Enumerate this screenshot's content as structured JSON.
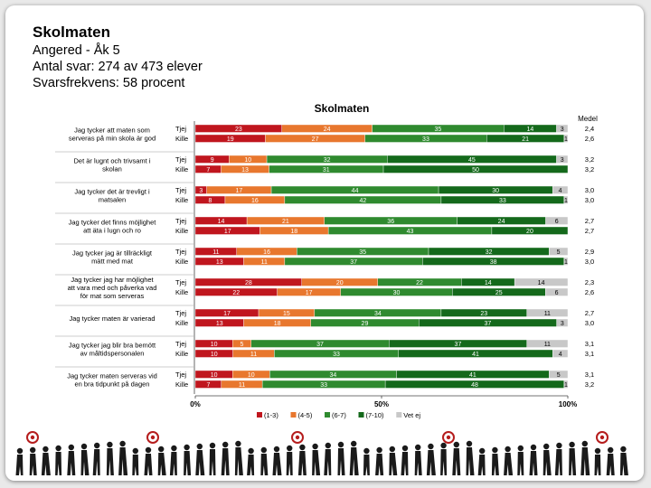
{
  "header": {
    "title": "Skolmaten",
    "line1": "Angered - Åk 5",
    "line2": "Antal svar: 274 av 473 elever",
    "line3": "Svarsfrekvens: 58 procent"
  },
  "chart_data": {
    "type": "bar",
    "stacked": true,
    "orientation": "horizontal",
    "title": "Skolmaten",
    "mean_header": "Medel",
    "x_ticks": [
      "0%",
      "50%",
      "100%"
    ],
    "xlim": [
      0,
      100
    ],
    "legend_placement": "bottom",
    "series": [
      {
        "name": "(1-3)",
        "color": "#c0161e"
      },
      {
        "name": "(4-5)",
        "color": "#e8772e"
      },
      {
        "name": "(6-7)",
        "color": "#2f8a2f"
      },
      {
        "name": "(7-10)",
        "color": "#14691b"
      },
      {
        "name": "Vet ej",
        "color": "#c8c8c8"
      }
    ],
    "questions": [
      {
        "label": "Jag tycker att maten som serveras på min skola är god",
        "rows": [
          {
            "group": "Tjej",
            "values": [
              23,
              24,
              35,
              14,
              3
            ],
            "mean": "2,4"
          },
          {
            "group": "Kille",
            "values": [
              19,
              27,
              33,
              21,
              1
            ],
            "mean": "2,6"
          }
        ]
      },
      {
        "label": "Det är lugnt och trivsamt i skolan",
        "rows": [
          {
            "group": "Tjej",
            "values": [
              9,
              10,
              32,
              45,
              3
            ],
            "mean": "3,2"
          },
          {
            "group": "Kille",
            "values": [
              7,
              13,
              31,
              50,
              0
            ],
            "mean": "3,2"
          }
        ]
      },
      {
        "label": "Jag tycker det är trevligt i matsalen",
        "rows": [
          {
            "group": "Tjej",
            "values": [
              3,
              17,
              44,
              30,
              4
            ],
            "mean": "3,0"
          },
          {
            "group": "Kille",
            "values": [
              8,
              16,
              42,
              33,
              1
            ],
            "mean": "3,0"
          }
        ]
      },
      {
        "label": "Jag tycker det finns möjlighet att äta i lugn och ro",
        "rows": [
          {
            "group": "Tjej",
            "values": [
              14,
              21,
              36,
              24,
              6
            ],
            "mean": "2,7"
          },
          {
            "group": "Kille",
            "values": [
              17,
              18,
              43,
              20,
              0
            ],
            "mean": "2,7"
          }
        ]
      },
      {
        "label": "Jag tycker jag är tillräckligt mätt med mat",
        "rows": [
          {
            "group": "Tjej",
            "values": [
              11,
              16,
              35,
              32,
              5
            ],
            "mean": "2,9"
          },
          {
            "group": "Kille",
            "values": [
              13,
              11,
              37,
              38,
              1
            ],
            "mean": "3,0"
          }
        ]
      },
      {
        "label": "Jag tycker jag har möjlighet att vara med och påverka vad för mat som serveras",
        "rows": [
          {
            "group": "Tjej",
            "values": [
              28,
              20,
              22,
              14,
              14
            ],
            "mean": "2,3"
          },
          {
            "group": "Kille",
            "values": [
              22,
              17,
              30,
              25,
              6
            ],
            "mean": "2,6"
          }
        ]
      },
      {
        "label": "Jag tycker maten är varierad",
        "rows": [
          {
            "group": "Tjej",
            "values": [
              17,
              15,
              34,
              23,
              11
            ],
            "mean": "2,7"
          },
          {
            "group": "Kille",
            "values": [
              13,
              18,
              29,
              37,
              3
            ],
            "mean": "3,0"
          }
        ]
      },
      {
        "label": "Jag tycker jag blir bra bemött av måltidspersonalen",
        "rows": [
          {
            "group": "Tjej",
            "values": [
              10,
              5,
              37,
              37,
              11
            ],
            "mean": "3,1"
          },
          {
            "group": "Kille",
            "values": [
              10,
              11,
              33,
              41,
              4
            ],
            "mean": "3,1"
          }
        ]
      },
      {
        "label": "Jag tycker maten serveras vid en bra tidpunkt på dagen",
        "rows": [
          {
            "group": "Tjej",
            "values": [
              10,
              10,
              34,
              41,
              5
            ],
            "mean": "3,1"
          },
          {
            "group": "Kille",
            "values": [
              7,
              11,
              33,
              48,
              1
            ],
            "mean": "3,2"
          }
        ]
      }
    ]
  }
}
